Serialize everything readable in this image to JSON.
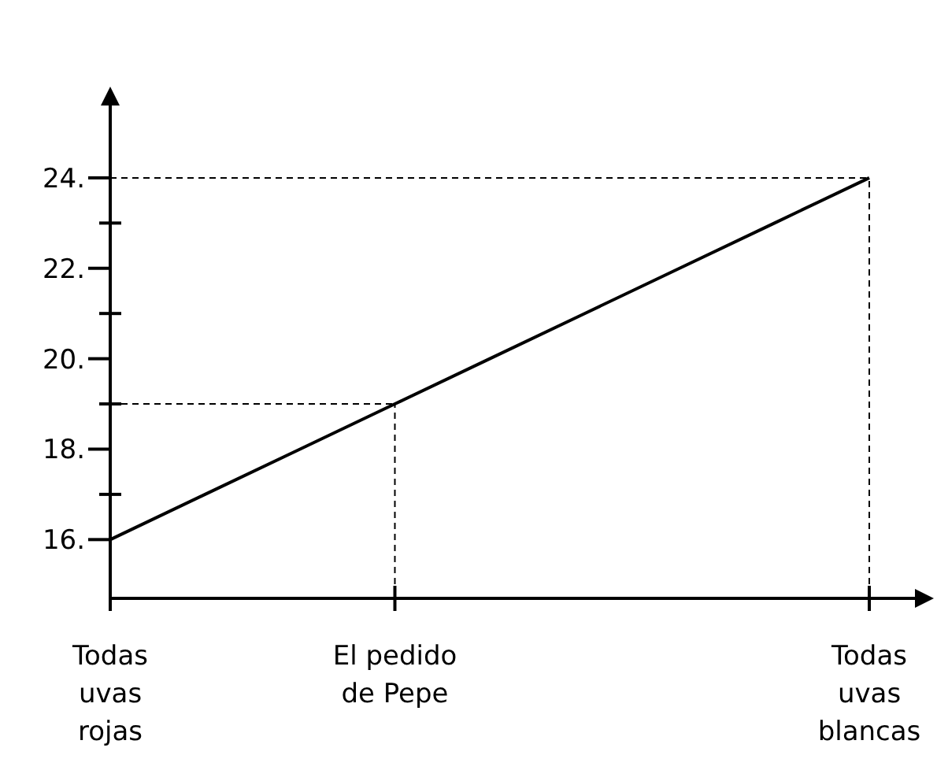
{
  "chart_data": {
    "type": "line",
    "categories": [
      "Todas uvas rojas",
      null,
      null,
      "El pedido de Pepe",
      null,
      null,
      null,
      null,
      "Todas uvas blancas"
    ],
    "series": [
      {
        "color": "#000000",
        "values": [
          16,
          17,
          18,
          19,
          20,
          21,
          22,
          23,
          24
        ]
      }
    ],
    "ylim": [
      14.7,
      25.6
    ],
    "yticks": [
      {
        "value": 16,
        "label": "16."
      },
      {
        "value": 17,
        "label": null
      },
      {
        "value": 18,
        "label": "18."
      },
      {
        "value": 19,
        "label": null
      },
      {
        "value": 20,
        "label": "20."
      },
      {
        "value": 21,
        "label": null
      },
      {
        "value": 22,
        "label": "22."
      },
      {
        "value": 23,
        "label": null
      },
      {
        "value": 24,
        "label": "24."
      }
    ],
    "ref_lines": [
      {
        "axis": "y",
        "value": 19,
        "line_style": "dashed"
      },
      {
        "axis": "x",
        "value": "El pedido de Pepe",
        "line_style": "dashed"
      },
      {
        "axis": "y",
        "value": 24,
        "line_style": "dashed"
      },
      {
        "axis": "x",
        "value": "Todas uvas blancas",
        "line_style": "dashed"
      }
    ],
    "grid": false,
    "marker": "none",
    "line_style": "solid"
  }
}
